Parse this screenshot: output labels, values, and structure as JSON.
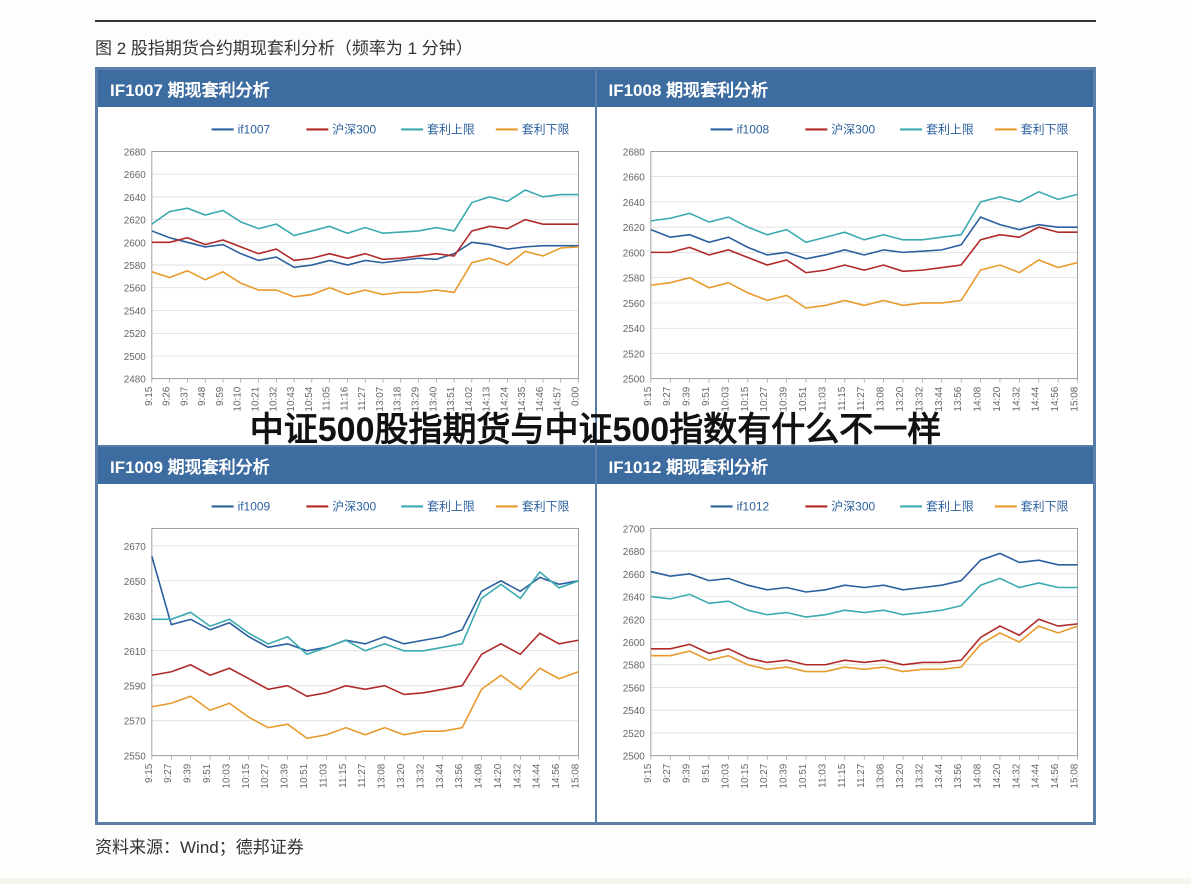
{
  "figure_title": "图 2 股指期货合约期现套利分析（频率为 1 分钟）",
  "overlay_text": "中证500股指期货与中证500指数有什么不一样",
  "source_text": "资料来源：Wind；德邦证券",
  "legend_labels": [
    "沪深300",
    "套利上限",
    "套利下限"
  ],
  "colors": {
    "series_future": "#2b5f9e",
    "series_spot": "#b02a2a",
    "series_upper": "#3baab0",
    "series_lower": "#e89a2d",
    "grid": "#d8d8d8",
    "axis": "#888",
    "panel_head_bg": "#3c6ca0",
    "panel_head_text": "#ffffff",
    "legend_text": "#2b5f9e",
    "tick_text": "#666"
  },
  "typography": {
    "title_fontsize": 17,
    "panel_head_fontsize": 17,
    "legend_fontsize": 12,
    "tick_fontsize": 10,
    "overlay_fontsize": 34,
    "source_fontsize": 17
  },
  "x_times": [
    "9:15",
    "9:26",
    "9:37",
    "9:48",
    "9:59",
    "10:10",
    "10:21",
    "10:32",
    "10:43",
    "10:54",
    "11:05",
    "11:16",
    "11:27",
    "13:07",
    "13:18",
    "13:29",
    "13:40",
    "13:51",
    "14:02",
    "14:13",
    "14:24",
    "14:35",
    "14:46",
    "14:57",
    "0:00"
  ],
  "x_times_alt": [
    "9:15",
    "9:27",
    "9:39",
    "9:51",
    "10:03",
    "10:15",
    "10:27",
    "10:39",
    "10:51",
    "11:03",
    "11:15",
    "11:27",
    "13:08",
    "13:20",
    "13:32",
    "13:44",
    "13:56",
    "14:08",
    "14:20",
    "14:32",
    "14:44",
    "14:56",
    "15:08"
  ],
  "panels": [
    {
      "title": "IF1007 期现套利分析",
      "future_label": "if1007",
      "ylim": [
        2480,
        2680
      ],
      "ytick_step": 20,
      "use_x": 0,
      "future": [
        2610,
        2604,
        2600,
        2596,
        2598,
        2590,
        2584,
        2587,
        2578,
        2580,
        2584,
        2580,
        2584,
        2582,
        2584,
        2586,
        2585,
        2590,
        2600,
        2598,
        2594,
        2596,
        2597,
        2597,
        2597
      ],
      "spot": [
        2600,
        2600,
        2604,
        2598,
        2602,
        2596,
        2590,
        2594,
        2584,
        2586,
        2590,
        2586,
        2590,
        2585,
        2586,
        2588,
        2590,
        2588,
        2610,
        2614,
        2612,
        2620,
        2616,
        2616,
        2616
      ],
      "upper": [
        2616,
        2627,
        2630,
        2624,
        2628,
        2618,
        2612,
        2616,
        2606,
        2610,
        2614,
        2608,
        2613,
        2608,
        2609,
        2610,
        2613,
        2610,
        2635,
        2640,
        2636,
        2646,
        2640,
        2642,
        2642
      ],
      "lower": [
        2574,
        2569,
        2575,
        2567,
        2574,
        2564,
        2558,
        2558,
        2552,
        2554,
        2560,
        2554,
        2558,
        2554,
        2556,
        2556,
        2558,
        2556,
        2582,
        2586,
        2580,
        2592,
        2588,
        2595,
        2596
      ]
    },
    {
      "title": "IF1008 期现套利分析",
      "future_label": "if1008",
      "ylim": [
        2500,
        2680
      ],
      "ytick_step": 20,
      "use_x": 1,
      "future": [
        2618,
        2612,
        2614,
        2608,
        2612,
        2604,
        2598,
        2600,
        2595,
        2598,
        2602,
        2598,
        2602,
        2600,
        2601,
        2602,
        2606,
        2628,
        2622,
        2618,
        2622,
        2620,
        2620
      ],
      "spot": [
        2600,
        2600,
        2604,
        2598,
        2602,
        2596,
        2590,
        2594,
        2584,
        2586,
        2590,
        2586,
        2590,
        2585,
        2586,
        2588,
        2590,
        2610,
        2614,
        2612,
        2620,
        2616,
        2616
      ],
      "upper": [
        2625,
        2627,
        2631,
        2624,
        2628,
        2620,
        2614,
        2618,
        2608,
        2612,
        2616,
        2610,
        2614,
        2610,
        2610,
        2612,
        2614,
        2640,
        2644,
        2640,
        2648,
        2642,
        2646
      ],
      "lower": [
        2574,
        2576,
        2580,
        2572,
        2576,
        2568,
        2562,
        2566,
        2556,
        2558,
        2562,
        2558,
        2562,
        2558,
        2560,
        2560,
        2562,
        2586,
        2590,
        2584,
        2594,
        2588,
        2592
      ]
    },
    {
      "title": "IF1009 期现套利分析",
      "future_label": "if1009",
      "ylim": [
        2550,
        2680
      ],
      "ytick_step": 20,
      "use_x": 1,
      "future": [
        2664,
        2625,
        2628,
        2622,
        2626,
        2618,
        2612,
        2614,
        2610,
        2612,
        2616,
        2614,
        2618,
        2614,
        2616,
        2618,
        2622,
        2644,
        2650,
        2644,
        2652,
        2648,
        2650
      ],
      "spot": [
        2596,
        2598,
        2602,
        2596,
        2600,
        2594,
        2588,
        2590,
        2584,
        2586,
        2590,
        2588,
        2590,
        2585,
        2586,
        2588,
        2590,
        2608,
        2614,
        2608,
        2620,
        2614,
        2616
      ],
      "upper": [
        2628,
        2628,
        2632,
        2624,
        2628,
        2620,
        2614,
        2618,
        2608,
        2612,
        2616,
        2610,
        2614,
        2610,
        2610,
        2612,
        2614,
        2640,
        2648,
        2640,
        2655,
        2646,
        2650
      ],
      "lower": [
        2578,
        2580,
        2584,
        2576,
        2580,
        2572,
        2566,
        2568,
        2560,
        2562,
        2566,
        2562,
        2566,
        2562,
        2564,
        2564,
        2566,
        2588,
        2596,
        2588,
        2600,
        2594,
        2598
      ]
    },
    {
      "title": "IF1012 期现套利分析",
      "future_label": "if1012",
      "ylim": [
        2500,
        2700
      ],
      "ytick_step": 20,
      "use_x": 1,
      "future": [
        2662,
        2658,
        2660,
        2654,
        2656,
        2650,
        2646,
        2648,
        2644,
        2646,
        2650,
        2648,
        2650,
        2646,
        2648,
        2650,
        2654,
        2672,
        2678,
        2670,
        2672,
        2668,
        2668
      ],
      "spot": [
        2594,
        2594,
        2598,
        2590,
        2594,
        2586,
        2582,
        2584,
        2580,
        2580,
        2584,
        2582,
        2584,
        2580,
        2582,
        2582,
        2584,
        2604,
        2614,
        2606,
        2620,
        2614,
        2616
      ],
      "upper": [
        2640,
        2638,
        2642,
        2634,
        2636,
        2628,
        2624,
        2626,
        2622,
        2624,
        2628,
        2626,
        2628,
        2624,
        2626,
        2628,
        2632,
        2650,
        2656,
        2648,
        2652,
        2648,
        2648
      ],
      "lower": [
        2588,
        2588,
        2592,
        2584,
        2588,
        2580,
        2576,
        2578,
        2574,
        2574,
        2578,
        2576,
        2578,
        2574,
        2576,
        2576,
        2578,
        2598,
        2608,
        2600,
        2614,
        2608,
        2614
      ]
    }
  ]
}
